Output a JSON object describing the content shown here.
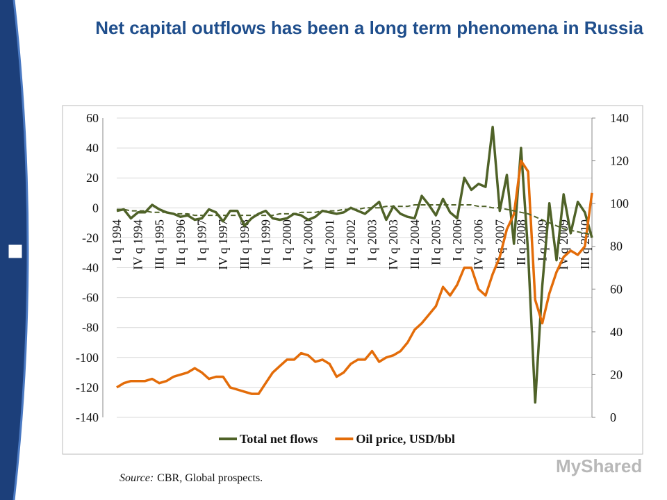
{
  "chart_data": {
    "type": "line",
    "title": "Net capital outflows has been a long term phenomena in Russia",
    "categories": [
      "I q 1994",
      null,
      null,
      "IV q 1994",
      null,
      null,
      "III q 1995",
      null,
      null,
      "II q 1996",
      null,
      null,
      "I q 1997",
      null,
      null,
      "IV q 1997",
      null,
      null,
      "III q 1998",
      null,
      null,
      "II q 1999",
      null,
      null,
      "I q 2000",
      null,
      null,
      "IV q 2000",
      null,
      null,
      "III q 2001",
      null,
      null,
      "II q 2002",
      null,
      null,
      "I q 2003",
      null,
      null,
      "IV q 2003",
      null,
      null,
      "III q 2004",
      null,
      null,
      "II q 2005",
      null,
      null,
      "I q 2006",
      null,
      null,
      "IV q 2006",
      null,
      null,
      "III q 2007",
      null,
      null,
      "II q 2008",
      null,
      null,
      "I q 2009",
      null,
      null,
      "IV q 2009",
      null,
      null,
      "III q 2010",
      null
    ],
    "series": [
      {
        "name": "Total net flows",
        "color": "#4f6228",
        "values": [
          -2,
          -1,
          -7,
          -3,
          -3,
          2,
          -1,
          -3,
          -4,
          -6,
          -5,
          -8,
          -7,
          -1,
          -3,
          -9,
          -2,
          -2,
          -12,
          -7,
          -4,
          -2,
          -7,
          -8,
          -7,
          -4,
          -5,
          -8,
          -6,
          -2,
          -3,
          -4,
          -3,
          0,
          -2,
          -4,
          0,
          4,
          -8,
          1,
          -4,
          -6,
          -7,
          8,
          2,
          -5,
          6,
          -3,
          -7,
          20,
          12,
          16,
          14,
          54,
          -2,
          22,
          -24,
          40,
          -30,
          -130,
          -52,
          3,
          -35,
          9,
          -17,
          4,
          -3,
          -20
        ]
      },
      {
        "name": "Oil price, USD/bbl",
        "color": "#e36c09",
        "axis": "y2",
        "values": [
          14,
          16,
          17,
          17,
          17,
          18,
          16,
          17,
          19,
          20,
          21,
          23,
          21,
          18,
          19,
          19,
          14,
          13,
          12,
          11,
          11,
          16,
          21,
          24,
          27,
          27,
          30,
          29,
          26,
          27,
          25,
          19,
          21,
          25,
          27,
          27,
          31,
          26,
          28,
          29,
          31,
          35,
          41,
          44,
          48,
          52,
          61,
          57,
          62,
          70,
          70,
          60,
          57,
          67,
          75,
          88,
          95,
          120,
          115,
          55,
          44,
          58,
          68,
          75,
          78,
          76,
          80,
          105
        ]
      },
      {
        "color": "#4f6228",
        "dash": true,
        "values": [
          -1,
          -1,
          -2,
          -2,
          -2,
          -3,
          -3,
          -3,
          -4,
          -4,
          -4,
          -5,
          -5,
          -5,
          -5,
          -5,
          -5,
          -5,
          -5,
          -5,
          -5,
          -5,
          -5,
          -4,
          -4,
          -4,
          -3,
          -3,
          -3,
          -2,
          -2,
          -2,
          -1,
          -1,
          -1,
          0,
          0,
          0,
          1,
          1,
          1,
          1,
          2,
          2,
          2,
          2,
          2,
          2,
          2,
          2,
          2,
          1,
          1,
          0,
          0,
          -1,
          -2,
          -3,
          -4,
          -6,
          -8,
          -10,
          -12,
          -14,
          -15,
          -16,
          -17,
          -18
        ]
      }
    ],
    "ylim": [
      -140,
      60
    ],
    "yticks": [
      -140,
      -120,
      -100,
      -80,
      -60,
      -40,
      -20,
      0,
      20,
      40,
      60
    ],
    "y2lim": [
      0,
      140
    ],
    "y2ticks": [
      0,
      20,
      40,
      60,
      80,
      100,
      120,
      140
    ],
    "grid": true,
    "legend": "bottom"
  },
  "source": {
    "label": "Source:",
    "text": "CBR, Global prospects."
  },
  "brand": "MyShared"
}
